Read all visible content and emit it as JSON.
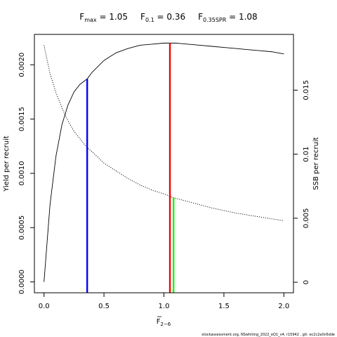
{
  "chart_data": {
    "type": "line",
    "title_parts": [
      {
        "main": "F",
        "sub": "max",
        "rest": " = 1.05"
      },
      {
        "main": "F",
        "sub": "0.1",
        "rest": " = 0.36"
      },
      {
        "main": "F",
        "sub": "0.35SPR",
        "rest": " = 1.08"
      }
    ],
    "xlabel": {
      "main": "F",
      "sub": "2−6"
    },
    "ylabel_left": "Yield per recruit",
    "ylabel_right": "SSB per recruit",
    "xlim": [
      -0.08,
      2.08
    ],
    "ylim_left": [
      -0.0001,
      0.00228
    ],
    "ylim_right": [
      -0.00082,
      0.01935
    ],
    "x_ticks": [
      0,
      0.5,
      1,
      1.5,
      2
    ],
    "x_tick_labels": [
      "0.0",
      "0.5",
      "1.0",
      "1.5",
      "2.0"
    ],
    "y_left_ticks": [
      0,
      0.0005,
      0.001,
      0.0015,
      0.002
    ],
    "y_left_tick_labels": [
      "0.0000",
      "0.0005",
      "0.0010",
      "0.0015",
      "0.0020"
    ],
    "y_right_ticks": [
      0,
      0.005,
      0.01,
      0.015
    ],
    "y_right_tick_labels": [
      "0",
      "0.005",
      "0.01",
      "0.015"
    ],
    "series": [
      {
        "key": "ypr",
        "axis": "left",
        "style": "solid",
        "x": [
          0,
          0.05,
          0.1,
          0.15,
          0.2,
          0.25,
          0.3,
          0.36,
          0.4,
          0.5,
          0.6,
          0.7,
          0.8,
          0.9,
          1.0,
          1.05,
          1.1,
          1.2,
          1.3,
          1.4,
          1.5,
          1.6,
          1.7,
          1.8,
          1.9,
          2.0
        ],
        "y": [
          0,
          0.00071,
          0.00116,
          0.00145,
          0.00163,
          0.00175,
          0.00182,
          0.00187,
          0.00193,
          0.00204,
          0.00211,
          0.00215,
          0.00218,
          0.00219,
          0.0022,
          0.0022,
          0.0022,
          0.00219,
          0.00218,
          0.00217,
          0.00216,
          0.00215,
          0.00214,
          0.00213,
          0.00212,
          0.0021
        ]
      },
      {
        "key": "sspr",
        "axis": "right",
        "style": "dotted",
        "x": [
          0,
          0.05,
          0.1,
          0.15,
          0.2,
          0.25,
          0.3,
          0.36,
          0.4,
          0.5,
          0.6,
          0.7,
          0.8,
          0.9,
          1.0,
          1.08,
          1.2,
          1.4,
          1.6,
          1.8,
          2.0
        ],
        "y": [
          0.0185,
          0.0163,
          0.0148,
          0.0136,
          0.0126,
          0.0118,
          0.0112,
          0.0105,
          0.0102,
          0.0093,
          0.0087,
          0.0081,
          0.0076,
          0.0072,
          0.0069,
          0.0066,
          0.0063,
          0.0058,
          0.0054,
          0.0051,
          0.0048
        ]
      }
    ],
    "reference_lines": [
      {
        "key": "f01",
        "x": 0.36,
        "axis": "left",
        "y_top": 0.00187,
        "color": "#0000ff"
      },
      {
        "key": "fmax",
        "x": 1.05,
        "axis": "left",
        "y_top": 0.0022,
        "color": "#ff0000"
      },
      {
        "key": "f035spr",
        "x": 1.08,
        "axis": "right",
        "y_top": 0.0066,
        "color": "#00ff00"
      }
    ],
    "credit": "stockassessment.org, NSwhiting_2022_eQ1_v4, r15942 , git: ec2c2a0c6dde"
  }
}
